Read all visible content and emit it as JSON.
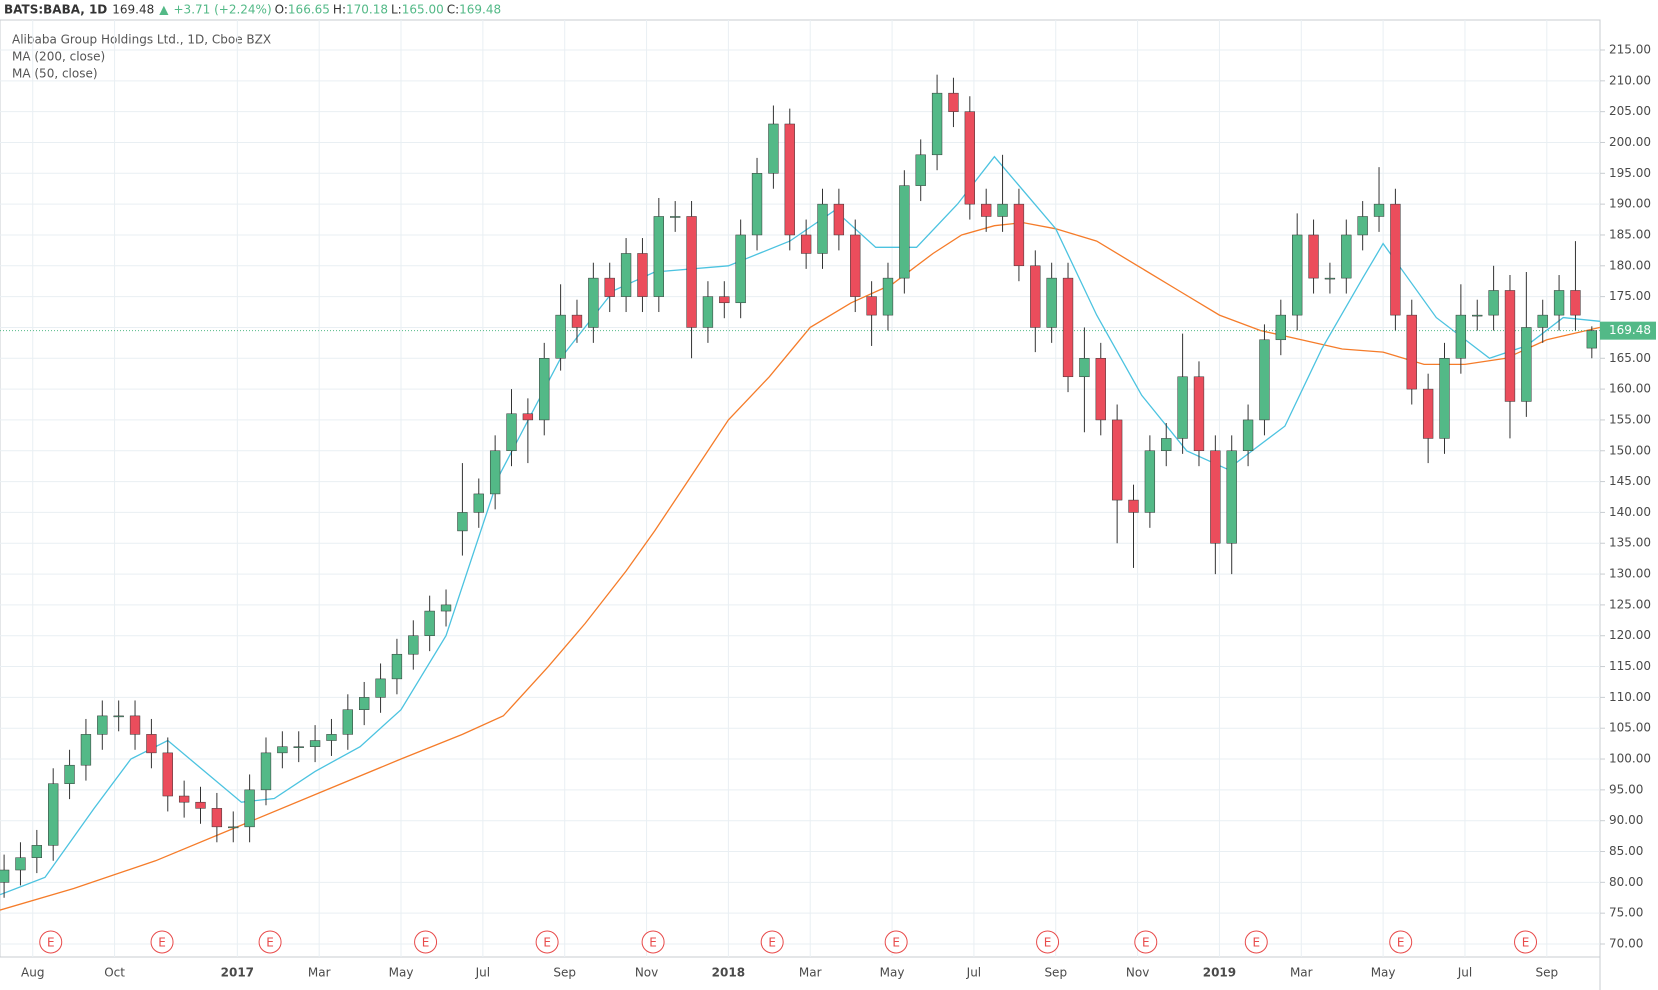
{
  "chart_data": {
    "type": "candlestick",
    "header": {
      "symbol": "BATS:BABA, 1D",
      "last": "169.48",
      "arrow": "▲",
      "change": "+3.71 (+2.24%)",
      "ohlc": [
        {
          "label": "O:",
          "value": "166.65"
        },
        {
          "label": "H:",
          "value": "170.18"
        },
        {
          "label": "L:",
          "value": "165.00"
        },
        {
          "label": "C:",
          "value": "169.48"
        }
      ]
    },
    "title": "Alibaba Group Holdings Ltd., 1D, Cboe BZX",
    "up_color": "#53b987",
    "down_color": "#eb4d5c",
    "grid": true,
    "candles": {
      "x": [
        6.3,
        6.7,
        7.1,
        7.5,
        7.9,
        8.3,
        8.7,
        9.1,
        9.5,
        9.9,
        10.3,
        10.7,
        11.1,
        11.5,
        11.9,
        12.3,
        12.7,
        13.1,
        13.5,
        13.9,
        14.3,
        14.7,
        15.1,
        15.5,
        15.9,
        16.3,
        16.7,
        17.1,
        17.5,
        17.9,
        18.3,
        18.7,
        19.1,
        19.5,
        19.9,
        20.3,
        20.7,
        21.1,
        21.5,
        21.9,
        22.3,
        22.7,
        23.1,
        23.5,
        23.9,
        24.3,
        24.7,
        25.1,
        25.5,
        25.9,
        26.3,
        26.7,
        27.1,
        27.5,
        27.9,
        28.3,
        28.7,
        29.1,
        29.5,
        29.9,
        30.3,
        30.7,
        31.1,
        31.5,
        31.9,
        32.3,
        32.7,
        33.1,
        33.5,
        33.9,
        34.3,
        34.7,
        35.1,
        35.5,
        35.9,
        36.3,
        36.7,
        37.1,
        37.5,
        37.9,
        38.3,
        38.7,
        39.1,
        39.5,
        39.9,
        40.3,
        40.7,
        41.1,
        41.5,
        41.9,
        42.3,
        42.7,
        43.1,
        43.5,
        43.9,
        44.3,
        44.7,
        45.1
      ],
      "open": [
        80,
        82,
        84,
        86,
        96,
        99,
        104,
        107,
        107,
        104,
        101,
        94,
        93,
        92,
        89,
        89,
        95,
        101,
        102,
        102,
        103,
        104,
        108,
        110,
        113,
        117,
        120,
        124,
        137,
        140,
        143,
        150,
        156,
        155,
        165,
        172,
        170,
        178,
        175,
        182,
        175,
        188,
        188,
        170,
        175,
        174,
        185,
        195,
        203,
        185,
        182,
        190,
        185,
        175,
        172,
        178,
        193,
        198,
        208,
        205,
        190,
        188,
        190,
        180,
        170,
        178,
        162,
        165,
        155,
        142,
        140,
        150,
        152,
        162,
        150,
        135,
        150,
        155,
        168,
        172,
        185,
        178,
        178,
        185,
        188,
        190,
        172,
        160,
        152,
        165,
        172,
        172,
        176,
        158,
        170,
        172,
        176,
        166.65
      ],
      "high": [
        84.5,
        86.5,
        88.5,
        98.5,
        101.5,
        106.5,
        109.5,
        109.5,
        109.5,
        106.5,
        103.5,
        96.5,
        95.5,
        94.5,
        91.5,
        97.5,
        103.5,
        104.5,
        104.5,
        105.5,
        106.5,
        110.5,
        112.5,
        115.5,
        119.5,
        122.5,
        126.5,
        127.5,
        148,
        145.5,
        152.5,
        160,
        158.5,
        167.5,
        177,
        174.5,
        180.5,
        180.5,
        184.5,
        184.5,
        191,
        190.5,
        190.5,
        177.5,
        177.5,
        187.5,
        197.5,
        206,
        205.5,
        187.5,
        192.5,
        192.5,
        187.5,
        177.5,
        180.5,
        195.5,
        200.5,
        211,
        210.5,
        207.5,
        192.5,
        198,
        192.5,
        182.5,
        180.5,
        180.5,
        170,
        167.5,
        157.5,
        144.5,
        152.5,
        154.5,
        169,
        164.5,
        152.5,
        152.5,
        157.5,
        170.5,
        174.5,
        188.5,
        187.5,
        180.5,
        187.5,
        190.5,
        196,
        192.5,
        174.5,
        162.5,
        167.5,
        177,
        174.5,
        180,
        178.5,
        179,
        174.5,
        178.5,
        184,
        170.18
      ],
      "low": [
        77.5,
        79.5,
        81.5,
        83.5,
        93.5,
        96.5,
        101.5,
        104.5,
        101.5,
        98.5,
        91.5,
        90.5,
        89.5,
        86.5,
        86.5,
        86.5,
        92.5,
        98.5,
        99.5,
        99.5,
        100.5,
        101.5,
        105.5,
        107.5,
        110.5,
        114.5,
        117.5,
        121.5,
        133,
        137.5,
        140.5,
        147.5,
        148,
        152.5,
        163,
        167.5,
        167.5,
        172.5,
        172.5,
        172.5,
        172.5,
        185.5,
        165,
        167.5,
        171.5,
        171.5,
        182.5,
        192.5,
        182.5,
        179.5,
        179.5,
        182.5,
        172.5,
        167,
        169.5,
        175.5,
        190.5,
        195.5,
        202.5,
        187.5,
        185.5,
        185.5,
        177.5,
        166,
        167.5,
        159.5,
        153,
        152.5,
        135,
        131,
        137.5,
        147.5,
        149.5,
        147.5,
        130,
        130,
        147.5,
        152.5,
        165.5,
        169.5,
        175.5,
        175.5,
        175.5,
        182.5,
        185.5,
        169.5,
        157.5,
        148,
        149.5,
        162.5,
        169.5,
        169.5,
        152,
        155.5,
        167.5,
        169.5,
        169.5,
        165
      ],
      "close": [
        82,
        84,
        86,
        96,
        99,
        104,
        107,
        107,
        104,
        101,
        94,
        93,
        92,
        89,
        89,
        95,
        101,
        102,
        102,
        103,
        104,
        108,
        110,
        113,
        117,
        120,
        124,
        125,
        140,
        143,
        150,
        156,
        155,
        165,
        172,
        170,
        178,
        175,
        182,
        175,
        188,
        188,
        170,
        175,
        174,
        185,
        195,
        203,
        185,
        182,
        190,
        185,
        175,
        172,
        178,
        193,
        198,
        208,
        205,
        190,
        188,
        190,
        180,
        170,
        178,
        162,
        165,
        155,
        142,
        140,
        150,
        152,
        162,
        150,
        135,
        150,
        155,
        168,
        172,
        185,
        178,
        178,
        185,
        188,
        190,
        172,
        160,
        152,
        165,
        172,
        172,
        176,
        158,
        170,
        172,
        176,
        172,
        169.48
      ]
    },
    "series": [
      {
        "name": "MA (200, close)",
        "color": "#f57c2a",
        "x": [
          6.2,
          8,
          10,
          12,
          14,
          16,
          17.5,
          18.5,
          19.6,
          20.5,
          21.5,
          22.2,
          23,
          24,
          25,
          26,
          27,
          28,
          29,
          29.7,
          30.5,
          31.2,
          32,
          33,
          34,
          35,
          36,
          37,
          38,
          39,
          40,
          41,
          42,
          43,
          44,
          45.3
        ],
        "values": [
          75.5,
          79,
          83.5,
          89,
          94.5,
          100,
          104,
          107,
          115,
          122,
          130.5,
          137,
          145,
          155,
          162,
          170,
          174,
          177,
          182,
          185,
          186.5,
          187,
          186,
          184,
          180,
          176,
          172,
          169.5,
          168,
          166.5,
          166,
          164,
          164,
          165,
          168,
          170
        ]
      },
      {
        "name": "MA (50, close)",
        "color": "#4cc3e0",
        "x": [
          6.2,
          7.3,
          8.5,
          9.4,
          10.3,
          11.2,
          12.1,
          12.9,
          13.9,
          15,
          16,
          17.1,
          18.4,
          19.9,
          21.2,
          22.2,
          24,
          25.5,
          26.6,
          27.6,
          28.6,
          29.6,
          30.5,
          32,
          33,
          34.1,
          35.2,
          36.2,
          37.6,
          38.5,
          39.5,
          40,
          41.3,
          42.6,
          43.5,
          44.4,
          45.3
        ],
        "values": [
          78,
          80.8,
          92,
          100,
          103,
          98,
          93,
          93.6,
          98,
          102,
          108,
          120,
          146,
          165,
          176,
          179,
          180,
          184,
          189,
          183,
          183,
          190,
          197.7,
          186,
          172,
          159,
          150,
          147,
          154,
          166.5,
          178,
          183.6,
          171.6,
          165,
          167,
          171.6,
          171
        ]
      }
    ],
    "xlim": [
      6.2,
      45.3
    ],
    "ylim": [
      70,
      215
    ],
    "xticks": [
      {
        "value": 7,
        "label": "Aug"
      },
      {
        "value": 9,
        "label": "Oct"
      },
      {
        "value": 12,
        "label": "2017"
      },
      {
        "value": 14,
        "label": "Mar"
      },
      {
        "value": 16,
        "label": "May"
      },
      {
        "value": 18,
        "label": "Jul"
      },
      {
        "value": 20,
        "label": "Sep"
      },
      {
        "value": 22,
        "label": "Nov"
      },
      {
        "value": 24,
        "label": "2018"
      },
      {
        "value": 26,
        "label": "Mar"
      },
      {
        "value": 28,
        "label": "May"
      },
      {
        "value": 30,
        "label": "Jul"
      },
      {
        "value": 32,
        "label": "Sep"
      },
      {
        "value": 34,
        "label": "Nov"
      },
      {
        "value": 36,
        "label": "2019"
      },
      {
        "value": 38,
        "label": "Mar"
      },
      {
        "value": 40,
        "label": "May"
      },
      {
        "value": 42,
        "label": "Jul"
      },
      {
        "value": 44,
        "label": "Sep"
      }
    ],
    "yticks": [
      {
        "value": 70,
        "label": "70.00"
      },
      {
        "value": 75,
        "label": "75.00"
      },
      {
        "value": 80,
        "label": "80.00"
      },
      {
        "value": 85,
        "label": "85.00"
      },
      {
        "value": 90,
        "label": "90.00"
      },
      {
        "value": 95,
        "label": "95.00"
      },
      {
        "value": 100,
        "label": "100.00"
      },
      {
        "value": 105,
        "label": "105.00"
      },
      {
        "value": 110,
        "label": "110.00"
      },
      {
        "value": 115,
        "label": "115.00"
      },
      {
        "value": 120,
        "label": "120.00"
      },
      {
        "value": 125,
        "label": "125.00"
      },
      {
        "value": 130,
        "label": "130.00"
      },
      {
        "value": 135,
        "label": "135.00"
      },
      {
        "value": 140,
        "label": "140.00"
      },
      {
        "value": 145,
        "label": "145.00"
      },
      {
        "value": 150,
        "label": "150.00"
      },
      {
        "value": 155,
        "label": "155.00"
      },
      {
        "value": 160,
        "label": "160.00"
      },
      {
        "value": 165,
        "label": "165.00"
      },
      {
        "value": 170,
        "label": "170.00"
      },
      {
        "value": 175,
        "label": "175.00"
      },
      {
        "value": 180,
        "label": "180.00"
      },
      {
        "value": 185,
        "label": "185.00"
      },
      {
        "value": 190,
        "label": "190.00"
      },
      {
        "value": 195,
        "label": "195.00"
      },
      {
        "value": 200,
        "label": "200.00"
      },
      {
        "value": 205,
        "label": "205.00"
      },
      {
        "value": 210,
        "label": "210.00"
      },
      {
        "value": 215,
        "label": "215.00"
      }
    ],
    "last_price": {
      "value": 169.48,
      "label": "169.48"
    },
    "events": {
      "x": [
        7.44,
        10.16,
        12.8,
        16.6,
        19.57,
        22.16,
        25.07,
        28.1,
        31.8,
        34.2,
        36.9,
        40.43,
        43.48
      ],
      "labels": [
        "E",
        "E",
        "E",
        "E",
        "E",
        "E",
        "E",
        "E",
        "E",
        "E",
        "E",
        "E",
        "E"
      ]
    }
  }
}
